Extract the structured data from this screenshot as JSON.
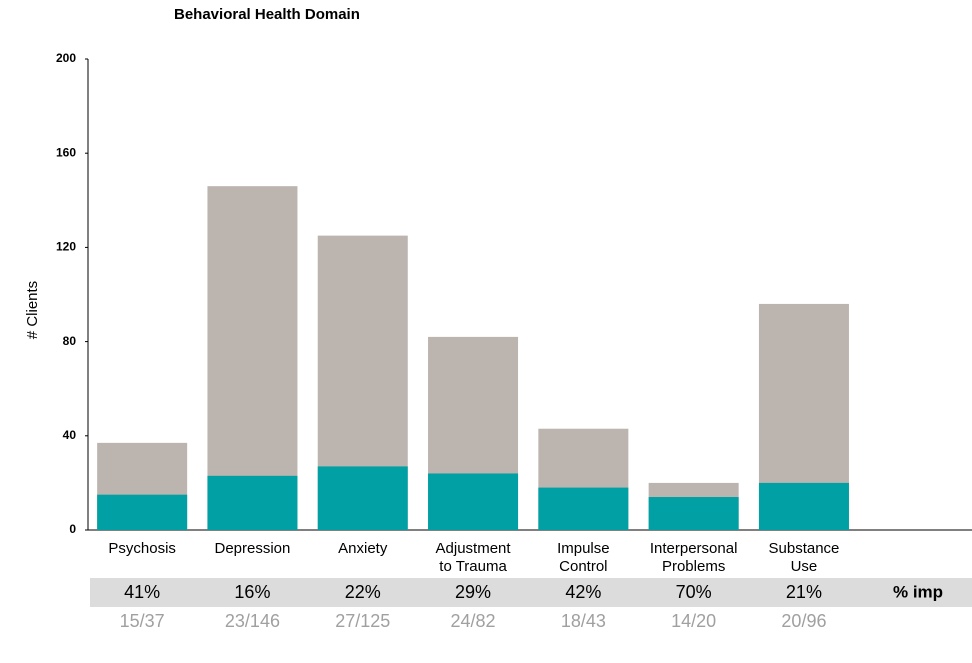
{
  "chart_data": {
    "type": "bar",
    "title": "Behavioral Health Domain",
    "y_label": "# Clients",
    "categories": [
      [
        "Psychosis"
      ],
      [
        "Depression"
      ],
      [
        "Anxiety"
      ],
      [
        "Adjustment",
        "to Trauma"
      ],
      [
        "Impulse",
        "Control"
      ],
      [
        "Interpersonal",
        "Problems"
      ],
      [
        "Substance",
        "Use"
      ]
    ],
    "series": [
      {
        "color": "#bcb4ae",
        "values": [
          37,
          146,
          125,
          82,
          43,
          20,
          96
        ]
      },
      {
        "color": "#00a0a4",
        "values": [
          15,
          23,
          27,
          24,
          18,
          14,
          20
        ]
      }
    ],
    "ylim": [
      0,
      200
    ],
    "yticks": [
      0,
      40,
      80,
      120,
      160,
      200
    ],
    "grid": false,
    "percent_labels": [
      "41%",
      "16%",
      "22%",
      "29%",
      "42%",
      "70%",
      "21%"
    ],
    "fraction_labels": [
      "15/37",
      "23/146",
      "27/125",
      "24/82",
      "18/43",
      "14/20",
      "20/96"
    ],
    "row_label": "% imp"
  }
}
